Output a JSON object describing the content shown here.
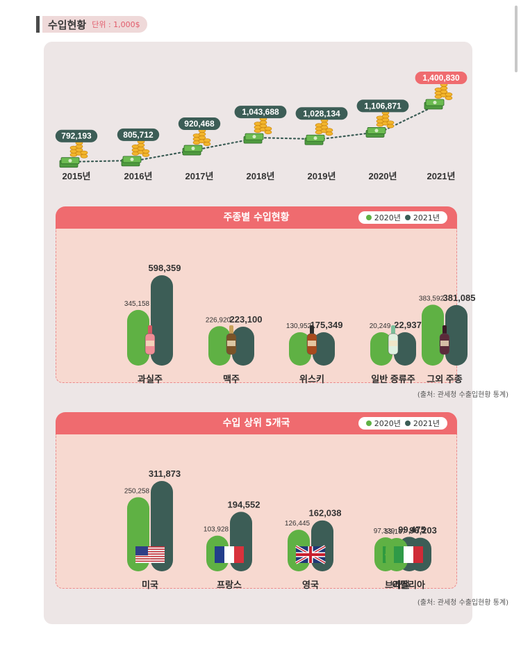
{
  "header": {
    "title": "수입현황",
    "unit": "단위 : 1,000$"
  },
  "colors": {
    "accent": "#ef6b6f",
    "s2020": "#5fb144",
    "s2021": "#3c5d56",
    "highlight": "#ef6b6f",
    "label_bg": "#3c5d56"
  },
  "chart_data": [
    {
      "type": "line",
      "categories": [
        "2015년",
        "2016년",
        "2017년",
        "2018년",
        "2019년",
        "2020년",
        "2021년"
      ],
      "values": [
        792193,
        805712,
        920468,
        1043688,
        1028134,
        1106871,
        1400830
      ],
      "value_labels": [
        "792,193",
        "805,712",
        "920,468",
        "1,043,688",
        "1,028,134",
        "1,106,871",
        "1,400,830"
      ]
    },
    {
      "type": "bar",
      "title": "주종별 수입현황",
      "categories": [
        "과실주",
        "맥주",
        "위스키",
        "일반 증류주",
        "그외 주종"
      ],
      "series": [
        {
          "name": "2020년",
          "values": [
            345158,
            226920,
            130952,
            20249,
            383592
          ],
          "labels": [
            "345,158",
            "226,920",
            "130,952",
            "20,249",
            "383,592"
          ]
        },
        {
          "name": "2021년",
          "values": [
            598359,
            223100,
            175349,
            22937,
            381085
          ],
          "labels": [
            "598,359",
            "223,100",
            "175,349",
            "22,937",
            "381,085"
          ]
        }
      ],
      "bottle_icons": [
        "fruit-wine-bottle-icon",
        "beer-bottle-icon",
        "whisky-bottle-icon",
        "spirit-bottle-icon",
        "other-liquor-bottle-icon"
      ],
      "source": "(출처: 관세청 수출입현황 통계)"
    },
    {
      "type": "bar",
      "title": "수입 상위 5개국",
      "categories": [
        "미국",
        "프랑스",
        "영국",
        "브라질",
        "이탈리아"
      ],
      "series": [
        {
          "name": "2020년",
          "values": [
            250258,
            103928,
            126445,
            97339,
            53167
          ],
          "labels": [
            "250,258",
            "103,928",
            "126,445",
            "97,339",
            "53,167"
          ]
        },
        {
          "name": "2021년",
          "values": [
            311873,
            194552,
            162038,
            99475,
            96203
          ],
          "labels": [
            "311,873",
            "194,552",
            "162,038",
            "99,475",
            "96,203"
          ]
        }
      ],
      "flag_icons": [
        "usa-flag-icon",
        "france-flag-icon",
        "uk-flag-icon",
        "brazil-flag-icon",
        "italy-flag-icon"
      ],
      "source": "(출처: 관세청 수출입현황 통계)"
    }
  ]
}
